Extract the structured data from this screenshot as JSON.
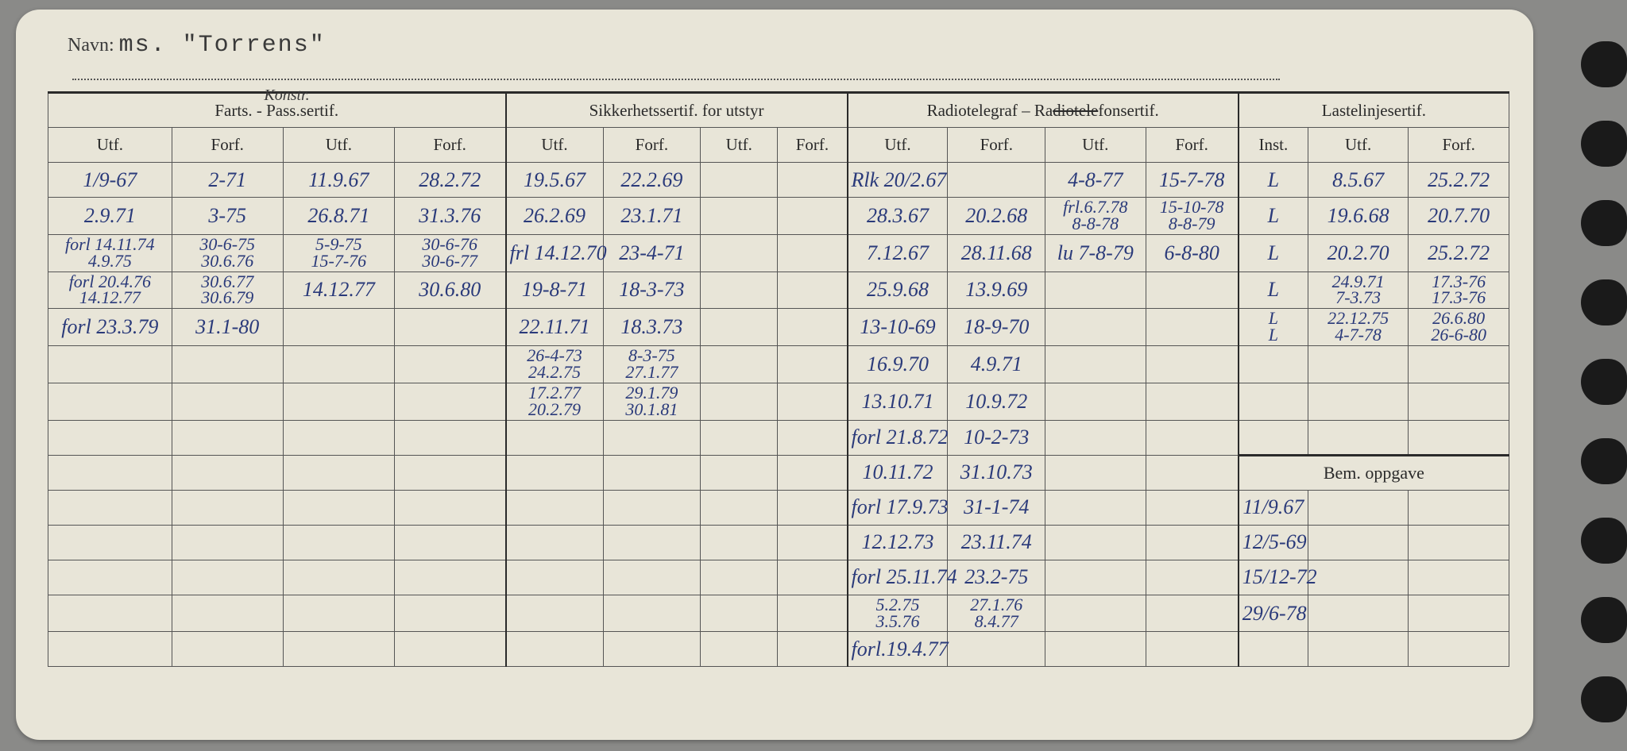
{
  "header": {
    "name_label": "Navn:",
    "name_value": "ms. \"Torrens\""
  },
  "groups": {
    "g1": "Farts. - Pass.sertif.",
    "g1_over": "Konstr.",
    "g2": "Sikkerhetssertif. for utstyr",
    "g3": "Radiotelegraf – Radiotelefonsertif.",
    "g4": "Lastelinjesertif.",
    "bem": "Bem. oppgave"
  },
  "sub": {
    "utf": "Utf.",
    "forf": "Forf.",
    "inst": "Inst."
  },
  "rows": [
    {
      "c1": "1/9-67",
      "c2": "2-71",
      "c3": "11.9.67",
      "c4": "28.2.72",
      "c5": "19.5.67",
      "c6": "22.2.69",
      "c7": "",
      "c8": "",
      "c9": "Rlk 20/2.67",
      "c10": "",
      "c11": "4-8-77",
      "c12": "15-7-78",
      "c13": "L",
      "c14": "8.5.67",
      "c15": "25.2.72"
    },
    {
      "c1": "2.9.71",
      "c2": "3-75",
      "c3": "26.8.71",
      "c4": "31.3.76",
      "c5": "26.2.69",
      "c6": "23.1.71",
      "c7": "",
      "c8": "",
      "c9": "28.3.67",
      "c10": "20.2.68",
      "c11": "frl.6.7.78\n8-8-78",
      "c12": "15-10-78\n8-8-79",
      "c13": "L",
      "c14": "19.6.68",
      "c15": "20.7.70"
    },
    {
      "c1": "forl 14.11.74\n4.9.75",
      "c2": "30-6-75\n30.6.76",
      "c3": "5-9-75\n15-7-76",
      "c4": "30-6-76\n30-6-77",
      "c5": "frl 14.12.70",
      "c6": "23-4-71",
      "c7": "",
      "c8": "",
      "c9": "7.12.67",
      "c10": "28.11.68",
      "c11": "lu 7-8-79",
      "c12": "6-8-80",
      "c13": "L",
      "c14": "20.2.70",
      "c15": "25.2.72"
    },
    {
      "c1": "forl 20.4.76\n14.12.77",
      "c2": "30.6.77\n30.6.79",
      "c3": "14.12.77",
      "c4": "30.6.80",
      "c5": "19-8-71",
      "c6": "18-3-73",
      "c7": "",
      "c8": "",
      "c9": "25.9.68",
      "c10": "13.9.69",
      "c11": "",
      "c12": "",
      "c13": "L",
      "c14": "24.9.71\n7-3.73",
      "c15": "17.3-76\n17.3-76"
    },
    {
      "c1": "forl 23.3.79",
      "c2": "31.1-80",
      "c3": "",
      "c4": "",
      "c5": "22.11.71",
      "c6": "18.3.73",
      "c7": "",
      "c8": "",
      "c9": "13-10-69",
      "c10": "18-9-70",
      "c11": "",
      "c12": "",
      "c13": "L\nL",
      "c14": "22.12.75\n4-7-78",
      "c15": "26.6.80\n26-6-80"
    },
    {
      "c1": "",
      "c2": "",
      "c3": "",
      "c4": "",
      "c5": "26-4-73\n24.2.75",
      "c6": "8-3-75\n27.1.77",
      "c7": "",
      "c8": "",
      "c9": "16.9.70",
      "c10": "4.9.71",
      "c11": "",
      "c12": "",
      "c13": "",
      "c14": "",
      "c15": ""
    },
    {
      "c1": "",
      "c2": "",
      "c3": "",
      "c4": "",
      "c5": "17.2.77\n20.2.79",
      "c6": "29.1.79\n30.1.81",
      "c7": "",
      "c8": "",
      "c9": "13.10.71",
      "c10": "10.9.72",
      "c11": "",
      "c12": "",
      "c13": "",
      "c14": "",
      "c15": ""
    },
    {
      "c1": "",
      "c2": "",
      "c3": "",
      "c4": "",
      "c5": "",
      "c6": "",
      "c7": "",
      "c8": "",
      "c9": "forl 21.8.72",
      "c10": "10-2-73",
      "c11": "",
      "c12": "",
      "c13": "",
      "c14": "",
      "c15": ""
    },
    {
      "c1": "",
      "c2": "",
      "c3": "",
      "c4": "",
      "c5": "",
      "c6": "",
      "c7": "",
      "c8": "",
      "c9": "10.11.72",
      "c10": "31.10.73",
      "c11": "",
      "c12": ""
    },
    {
      "c1": "",
      "c2": "",
      "c3": "",
      "c4": "",
      "c5": "",
      "c6": "",
      "c7": "",
      "c8": "",
      "c9": "forl 17.9.73",
      "c10": "31-1-74",
      "c11": "",
      "c12": "",
      "bem1": "11/9.67"
    },
    {
      "c1": "",
      "c2": "",
      "c3": "",
      "c4": "",
      "c5": "",
      "c6": "",
      "c7": "",
      "c8": "",
      "c9": "12.12.73",
      "c10": "23.11.74",
      "c11": "",
      "c12": "",
      "bem1": "12/5-69"
    },
    {
      "c1": "",
      "c2": "",
      "c3": "",
      "c4": "",
      "c5": "",
      "c6": "",
      "c7": "",
      "c8": "",
      "c9": "forl 25.11.74",
      "c10": "23.2-75",
      "c11": "",
      "c12": "",
      "bem1": "15/12-72"
    },
    {
      "c1": "",
      "c2": "",
      "c3": "",
      "c4": "",
      "c5": "",
      "c6": "",
      "c7": "",
      "c8": "",
      "c9": "5.2.75\n3.5.76",
      "c10": "27.1.76\n8.4.77",
      "c11": "",
      "c12": "",
      "bem1": "29/6-78"
    },
    {
      "c1": "",
      "c2": "",
      "c3": "",
      "c4": "",
      "c5": "",
      "c6": "",
      "c7": "",
      "c8": "",
      "c9": "forl.19.4.77",
      "c10": "",
      "c11": "",
      "c12": ""
    }
  ]
}
